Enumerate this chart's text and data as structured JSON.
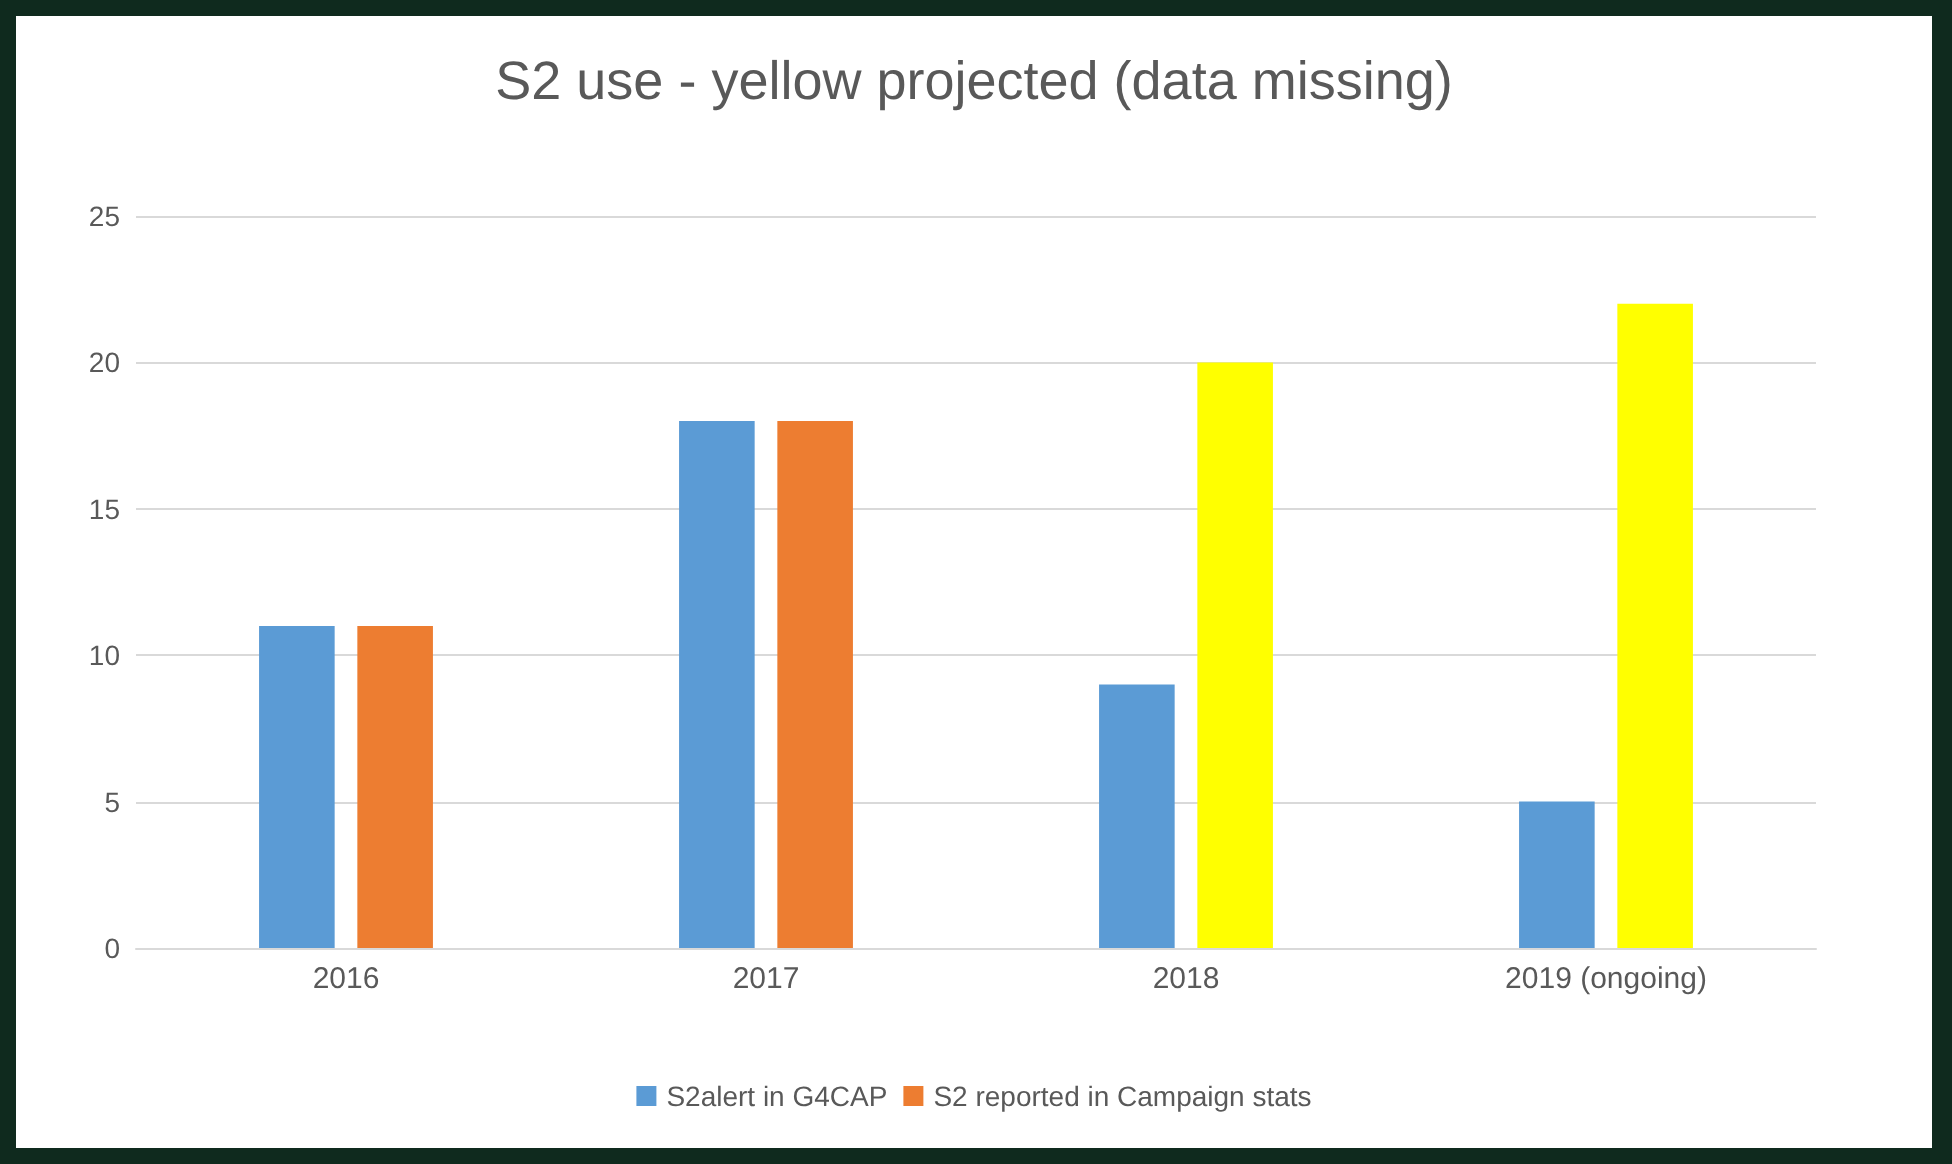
{
  "chart_data": {
    "type": "bar",
    "title": "S2 use - yellow projected (data missing)",
    "categories": [
      "2016",
      "2017",
      "2018",
      "2019 (ongoing)"
    ],
    "series": [
      {
        "name": "S2alert in G4CAP",
        "color": "#5b9bd5",
        "values": [
          11,
          18,
          9,
          5
        ]
      },
      {
        "name": "S2 reported in Campaign stats",
        "color": "#ed7d31",
        "colors": [
          "#ed7d31",
          "#ed7d31",
          "#ffff00",
          "#ffff00"
        ],
        "values": [
          11,
          18,
          20,
          22
        ]
      }
    ],
    "ylim": [
      0,
      25
    ],
    "yticks": [
      0,
      5,
      10,
      15,
      20,
      25
    ],
    "grid": "y",
    "legend": "bottom"
  }
}
